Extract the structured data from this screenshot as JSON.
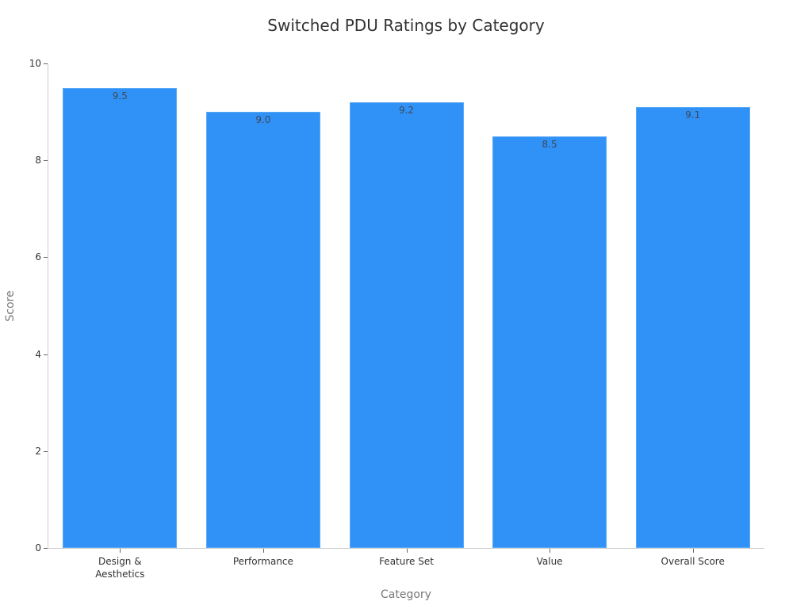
{
  "chart_data": {
    "type": "bar",
    "title": "Switched PDU Ratings by Category",
    "xlabel": "Category",
    "ylabel": "Score",
    "categories": [
      "Design &\nAesthetics",
      "Performance",
      "Feature Set",
      "Value",
      "Overall Score"
    ],
    "values": [
      9.5,
      9.0,
      9.2,
      8.5,
      9.1
    ],
    "value_labels": [
      "9.5",
      "9.0",
      "9.2",
      "8.5",
      "9.1"
    ],
    "ylim": [
      0,
      10
    ],
    "yticks": [
      "0",
      "2",
      "4",
      "6",
      "8",
      "10"
    ],
    "grid": false,
    "legend": null,
    "bar_color": "#3092f7"
  }
}
